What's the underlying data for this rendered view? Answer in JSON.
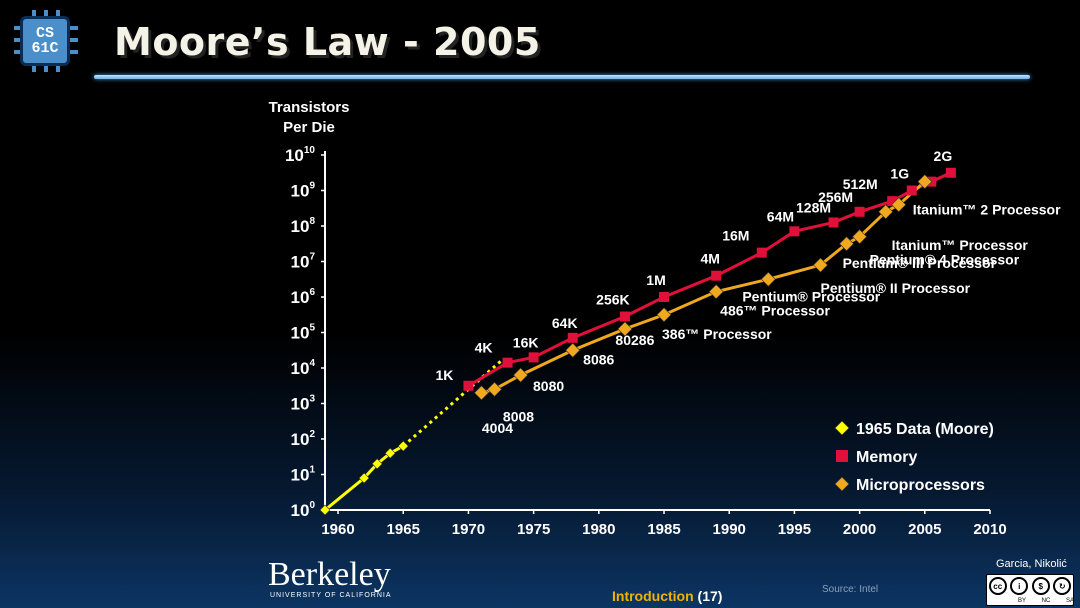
{
  "slide": {
    "title": "Moore’s Law - 2005",
    "logo": {
      "line1": "CS",
      "line2": "61C"
    },
    "footer": {
      "institution": "Berkeley",
      "institution_sub": "UNIVERSITY OF CALIFORNIA",
      "section_label": "Introduction",
      "page_number": "(17)",
      "source": "Source: Intel",
      "credit": "Garcia, Nikolić",
      "license_labels": [
        "BY",
        "NC",
        "SA"
      ]
    }
  },
  "chart_data": {
    "type": "line",
    "y_scale": "log10",
    "ylabel": "Transistors Per Die",
    "ylabel_lines": [
      "Transistors",
      "Per Die"
    ],
    "x_ticks": [
      "1960",
      "1965",
      "1970",
      "1975",
      "1980",
      "1985",
      "1990",
      "1995",
      "2000",
      "2005",
      "2010"
    ],
    "x_range": [
      1959,
      2010
    ],
    "y_range_exp": [
      0,
      10
    ],
    "y_tick_base": "10",
    "y_tick_exponents": [
      "0",
      "1",
      "2",
      "3",
      "4",
      "5",
      "6",
      "7",
      "8",
      "9",
      "10"
    ],
    "legend": [
      {
        "label": "1965 Data (Moore)",
        "color": "#ffff00",
        "marker": "diamond"
      },
      {
        "label": "Memory",
        "color": "#e0103a",
        "marker": "square"
      },
      {
        "label": "Microprocessors",
        "color": "#f0a81e",
        "marker": "diamond"
      }
    ],
    "series": [
      {
        "name": "1965 Data (Moore)",
        "color": "#ffff00",
        "points": [
          [
            1959,
            0
          ],
          [
            1962,
            0.9
          ],
          [
            1963,
            1.3
          ],
          [
            1964,
            1.6
          ],
          [
            1965,
            1.8
          ]
        ]
      },
      {
        "name": "Moore extrapolation",
        "color": "#ffff00",
        "dotted": true,
        "points": [
          [
            1965,
            1.8
          ],
          [
            1972.5,
            4.2
          ]
        ]
      },
      {
        "name": "Memory",
        "color": "#e0103a",
        "points": [
          [
            1970,
            3.5
          ],
          [
            1973,
            4.15
          ],
          [
            1975,
            4.3
          ],
          [
            1978,
            4.85
          ],
          [
            1982,
            5.45
          ],
          [
            1985,
            6.0
          ],
          [
            1989,
            6.6
          ],
          [
            1992.5,
            7.25
          ],
          [
            1995,
            7.85
          ],
          [
            1998,
            8.1
          ],
          [
            2000,
            8.4
          ],
          [
            2002.5,
            8.7
          ],
          [
            2004,
            9.0
          ],
          [
            2005.5,
            9.25
          ],
          [
            2007,
            9.5
          ]
        ]
      },
      {
        "name": "Memory extrapolation",
        "color": "#e0103a",
        "dotted": true,
        "points": [
          [
            2005.5,
            9.25
          ],
          [
            2007,
            9.5
          ]
        ]
      },
      {
        "name": "Microprocessors",
        "color": "#f0a81e",
        "points": [
          [
            1971,
            3.3
          ],
          [
            1972,
            3.4
          ],
          [
            1974,
            3.8
          ],
          [
            1978,
            4.5
          ],
          [
            1982,
            5.1
          ],
          [
            1985,
            5.5
          ],
          [
            1989,
            6.15
          ],
          [
            1993,
            6.5
          ],
          [
            1997,
            6.9
          ],
          [
            1999,
            7.5
          ],
          [
            2000,
            7.7
          ],
          [
            2002,
            8.4
          ],
          [
            2003,
            8.6
          ],
          [
            2005,
            9.25
          ]
        ]
      }
    ],
    "memory_labels": [
      {
        "text": "1K",
        "x": 1970,
        "exp": 3.5
      },
      {
        "text": "4K",
        "x": 1973,
        "exp": 4.15
      },
      {
        "text": "16K",
        "x": 1975,
        "exp": 4.3
      },
      {
        "text": "64K",
        "x": 1978,
        "exp": 4.85
      },
      {
        "text": "256K",
        "x": 1982,
        "exp": 5.45
      },
      {
        "text": "1M",
        "x": 1985,
        "exp": 6.0
      },
      {
        "text": "4M",
        "x": 1989,
        "exp": 6.6
      },
      {
        "text": "16M",
        "x": 1992.5,
        "exp": 7.25
      },
      {
        "text": "64M",
        "x": 1995,
        "exp": 7.85
      },
      {
        "text": "128M",
        "x": 1998,
        "exp": 8.1
      },
      {
        "text": "256M",
        "x": 2000,
        "exp": 8.4
      },
      {
        "text": "512M",
        "x": 2002.5,
        "exp": 8.7
      },
      {
        "text": "1G",
        "x": 2004,
        "exp": 9.0
      },
      {
        "text": "2G",
        "x": 2007,
        "exp": 9.5
      }
    ],
    "processor_labels": [
      {
        "text": "4004",
        "x": 1971,
        "exp": 3.3
      },
      {
        "text": "8008",
        "x": 1972,
        "exp": 3.4
      },
      {
        "text": "8080",
        "x": 1974,
        "exp": 3.8
      },
      {
        "text": "8086",
        "x": 1978,
        "exp": 4.5
      },
      {
        "text": "80286",
        "x": 1982,
        "exp": 5.1
      },
      {
        "text": "386™ Processor",
        "x": 1985,
        "exp": 5.5
      },
      {
        "text": "486™ Processor",
        "x": 1989,
        "exp": 6.15
      },
      {
        "text": "Pentium® Processor",
        "x": 1993,
        "exp": 6.5
      },
      {
        "text": "Pentium® II Processor",
        "x": 1997,
        "exp": 6.9
      },
      {
        "text": "Pentium® III Processor",
        "x": 1999,
        "exp": 7.5
      },
      {
        "text": "Pentium® 4 Processor",
        "x": 2000,
        "exp": 7.7
      },
      {
        "text": "Itanium™ Processor",
        "x": 2002,
        "exp": 8.4
      },
      {
        "text": "Itanium™ 2 Processor",
        "x": 2003,
        "exp": 8.6
      }
    ]
  }
}
